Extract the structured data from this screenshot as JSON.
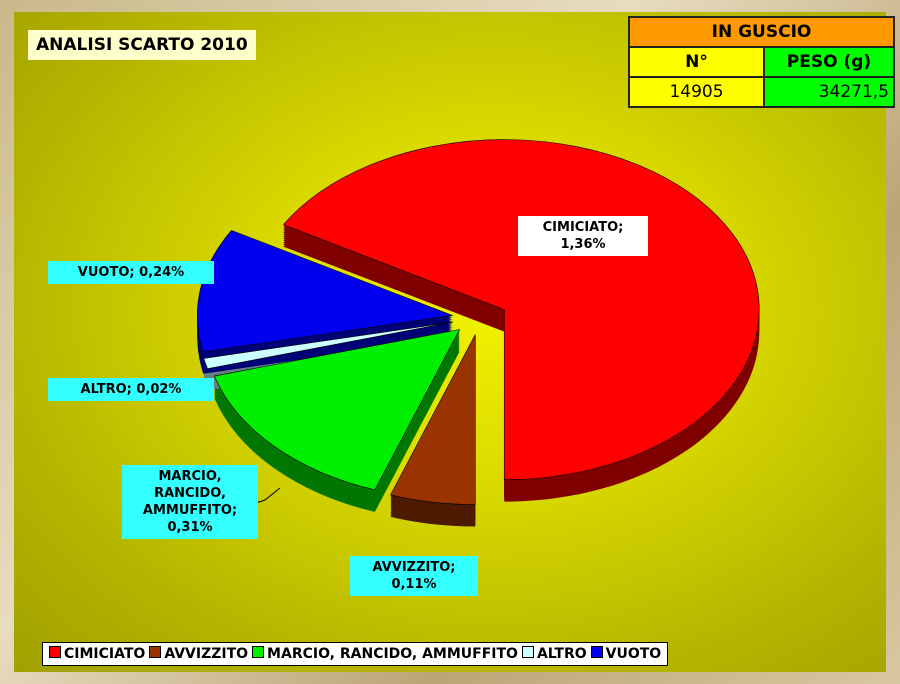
{
  "chart_data": {
    "type": "pie3d",
    "title": "ANALISI SCARTO 2010",
    "categories": [
      "CIMICIATO",
      "AVVIZZITO",
      "MARCIO, RANCIDO, AMMUFFITO",
      "ALTRO",
      "VUOTO"
    ],
    "values": [
      1.36,
      0.11,
      0.31,
      0.02,
      0.24
    ],
    "value_labels": [
      "CIMICIATO; 1,36%",
      "AVVIZZITO; 0,11%",
      "MARCIO, RANCIDO, AMMUFFITO; 0,31%",
      "ALTRO; 0,02%",
      "VUOTO; 0,24%"
    ],
    "colors": [
      "#ff0000",
      "#993300",
      "#00ee00",
      "#ccffff",
      "#0000ee"
    ],
    "legend": "bottom",
    "table": {
      "title": "IN GUSCIO",
      "headers": [
        "N°",
        "PESO (g)"
      ],
      "values": [
        "14905",
        "34271,5"
      ]
    }
  }
}
